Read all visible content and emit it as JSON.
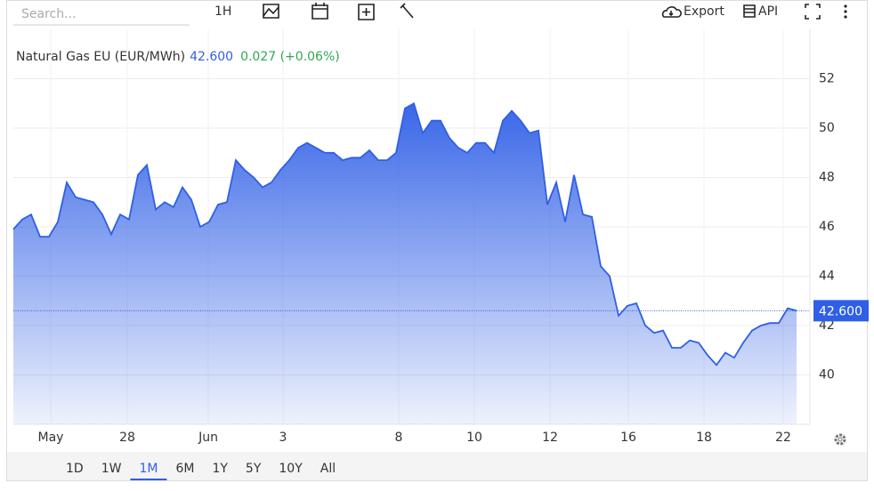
{
  "toolbar": {
    "search_placeholder": "Search...",
    "interval": "1H",
    "export": "Export",
    "api": "API"
  },
  "chart_data": {
    "type": "area",
    "title": "Natural Gas EU (EUR/MWh)",
    "last_price": 42.6,
    "last_price_label": "42.600",
    "change_label": "0.027 (+0.06%)",
    "x": [
      0,
      1,
      2,
      3,
      4,
      5,
      6,
      7,
      8,
      9,
      10,
      11,
      12,
      13,
      14,
      15,
      16,
      17,
      18,
      19,
      20,
      21,
      22,
      23,
      24,
      25,
      26,
      27,
      28,
      29,
      30,
      31,
      32,
      33,
      34,
      35,
      36,
      37,
      38,
      39,
      40,
      41,
      42,
      43,
      44,
      45,
      46,
      47,
      48,
      49,
      50,
      51,
      52,
      53,
      54,
      55,
      56,
      57,
      58,
      59,
      60,
      61,
      62,
      63,
      64,
      65,
      66,
      67,
      68,
      69,
      70,
      71,
      72,
      73,
      74,
      75,
      76,
      77,
      78,
      79,
      80,
      81,
      82,
      83,
      84,
      85,
      86,
      87,
      88
    ],
    "series": [
      {
        "name": "Natural Gas EU (EUR/MWh)",
        "color": "#2f5fe6",
        "values": [
          45.9,
          46.3,
          46.5,
          45.6,
          45.6,
          46.2,
          47.8,
          47.2,
          47.1,
          47.0,
          46.5,
          45.7,
          46.5,
          46.3,
          48.1,
          48.5,
          46.7,
          47.0,
          46.8,
          47.6,
          47.1,
          46.0,
          46.2,
          46.9,
          47.0,
          48.7,
          48.3,
          48.0,
          47.6,
          47.8,
          48.3,
          48.7,
          49.2,
          49.4,
          49.2,
          49.0,
          49.0,
          48.7,
          48.8,
          48.8,
          49.1,
          48.7,
          48.7,
          49.0,
          50.8,
          51.0,
          49.8,
          50.3,
          50.3,
          49.6,
          49.2,
          49.0,
          49.4,
          49.4,
          49.0,
          50.3,
          50.7,
          50.3,
          49.8,
          49.9,
          46.9,
          47.8,
          46.2,
          48.1,
          46.5,
          46.4,
          44.4,
          44.0,
          42.4,
          42.8,
          42.9,
          42.0,
          41.7,
          41.8,
          41.1,
          41.1,
          41.4,
          41.3,
          40.8,
          40.4,
          40.9,
          40.7,
          41.3,
          41.8,
          42.0,
          42.1,
          42.1,
          42.7,
          42.6
        ]
      }
    ],
    "xlim": [
      0,
      89.5
    ],
    "xticks": [
      {
        "value": 4.2,
        "label": "May"
      },
      {
        "value": 12.8,
        "label": "28"
      },
      {
        "value": 21.9,
        "label": "Jun"
      },
      {
        "value": 30.3,
        "label": "3"
      },
      {
        "value": 43.3,
        "label": "8"
      },
      {
        "value": 51.8,
        "label": "10"
      },
      {
        "value": 60.3,
        "label": "12"
      },
      {
        "value": 69.1,
        "label": "16"
      },
      {
        "value": 77.6,
        "label": "18"
      },
      {
        "value": 86.5,
        "label": "22"
      }
    ],
    "ylim": [
      38,
      54
    ],
    "yticks": [
      40,
      42,
      44,
      46,
      48,
      50,
      52
    ],
    "grid": true
  },
  "ranges": [
    "1D",
    "1W",
    "1M",
    "6M",
    "1Y",
    "5Y",
    "10Y",
    "All"
  ],
  "active_range": 2
}
